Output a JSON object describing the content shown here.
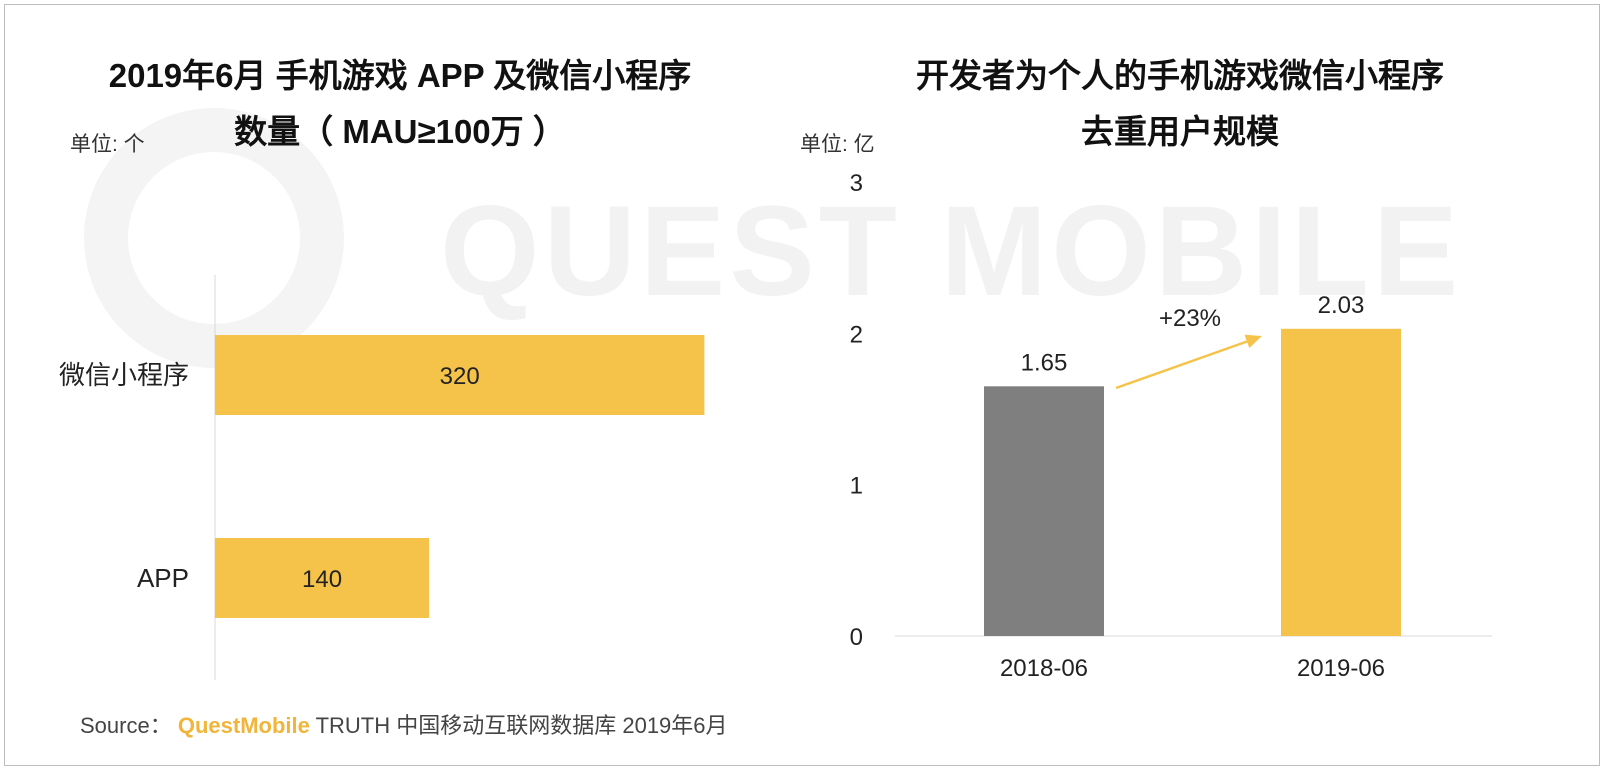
{
  "source": {
    "label": "Source：",
    "brand": "QuestMobile",
    "text": "TRUTH 中国移动互联网数据库 2019年6月"
  },
  "watermark": "QUEST MOBILE",
  "colors": {
    "yellow": "#f5c34a",
    "gray": "#7f7f7f",
    "axis": "#d9d9d9"
  },
  "chart_data": [
    {
      "type": "bar",
      "orientation": "horizontal",
      "title": [
        "2019年6月 手机游戏 APP 及微信小程序",
        "数量（ MAU≥100万 ）"
      ],
      "unit": "单位: 个",
      "categories": [
        "微信小程序",
        "APP"
      ],
      "values": [
        320,
        140
      ],
      "value_labels": [
        "320",
        "140"
      ],
      "xlim": [
        0,
        340
      ],
      "grid": false
    },
    {
      "type": "bar",
      "orientation": "vertical",
      "title": [
        "开发者为个人的手机游戏微信小程序",
        "去重用户规模"
      ],
      "unit": "单位: 亿",
      "categories": [
        "2018-06",
        "2019-06"
      ],
      "values": [
        1.65,
        2.03
      ],
      "value_labels": [
        "1.65",
        "2.03"
      ],
      "ylim": [
        0,
        3
      ],
      "yticks": [
        0,
        1,
        2,
        3
      ],
      "annotation": "+23%",
      "grid": false
    }
  ]
}
